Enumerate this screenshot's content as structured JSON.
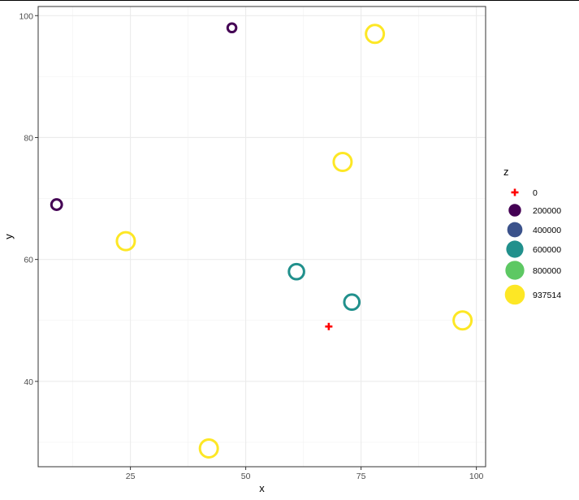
{
  "chart_data": {
    "type": "scatter",
    "xlabel": "x",
    "ylabel": "y",
    "xlim": [
      5,
      102
    ],
    "ylim": [
      26,
      101.5
    ],
    "x_ticks": [
      25,
      50,
      75,
      100
    ],
    "y_ticks": [
      40,
      60,
      80,
      100
    ],
    "x_tick_labels": [
      "25",
      "50",
      "75",
      "100"
    ],
    "y_tick_labels": [
      "40",
      "60",
      "80",
      "100"
    ],
    "grid": true,
    "legend_position": "right",
    "legend": {
      "title": "z",
      "entries": [
        {
          "label": "0",
          "value": 0,
          "shape": "cross",
          "color": "#ff0000"
        },
        {
          "label": "200000",
          "value": 200000,
          "shape": "circle",
          "color": "#440154"
        },
        {
          "label": "400000",
          "value": 400000,
          "shape": "circle",
          "color": "#3b528b"
        },
        {
          "label": "600000",
          "value": 600000,
          "shape": "circle",
          "color": "#21908c"
        },
        {
          "label": "800000",
          "value": 800000,
          "shape": "circle",
          "color": "#5dc863"
        },
        {
          "label": "937514",
          "value": 937514,
          "shape": "circle",
          "color": "#fde725"
        }
      ]
    },
    "points": [
      {
        "x": 47,
        "y": 98,
        "z": 100000,
        "color": "#440154"
      },
      {
        "x": 78,
        "y": 97,
        "z": 937514,
        "color": "#fde725"
      },
      {
        "x": 71,
        "y": 76,
        "z": 937514,
        "color": "#fde725"
      },
      {
        "x": 9,
        "y": 69,
        "z": 200000,
        "color": "#440154"
      },
      {
        "x": 24,
        "y": 63,
        "z": 937514,
        "color": "#fde725"
      },
      {
        "x": 61,
        "y": 58,
        "z": 600000,
        "color": "#21908c"
      },
      {
        "x": 73,
        "y": 53,
        "z": 600000,
        "color": "#21908c"
      },
      {
        "x": 68,
        "y": 49,
        "z": 0,
        "color": "#ff0000",
        "shape": "cross"
      },
      {
        "x": 97,
        "y": 50,
        "z": 937514,
        "color": "#fde725"
      },
      {
        "x": 42,
        "y": 29,
        "z": 937514,
        "color": "#fde725"
      }
    ]
  }
}
